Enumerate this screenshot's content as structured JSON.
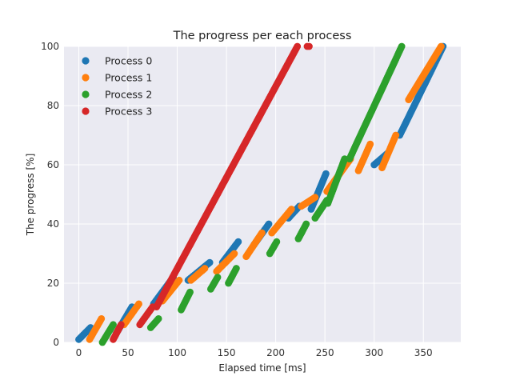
{
  "chart_data": {
    "type": "scatter",
    "title": "The progress per each process",
    "xlabel": "Elapsed time [ms]",
    "ylabel": "The progress [%]",
    "xlim": [
      -15,
      388
    ],
    "ylim": [
      0,
      100
    ],
    "xticks": [
      "0",
      "50",
      "100",
      "150",
      "200",
      "250",
      "300",
      "350"
    ],
    "yticks": [
      "0",
      "20",
      "40",
      "60",
      "80",
      "100"
    ],
    "grid": true,
    "legend_position": "top-left",
    "colors": {
      "plot_bg": "#eaeaf2",
      "grid": "#ffffff"
    },
    "series": [
      {
        "name": "Process 0",
        "color": "#1f77b4",
        "segments": [
          [
            0,
            1,
            12,
            5
          ],
          [
            38,
            3,
            54,
            12
          ],
          [
            76,
            13,
            96,
            22
          ],
          [
            111,
            21,
            133,
            27
          ],
          [
            146,
            27,
            162,
            34
          ],
          [
            178,
            33,
            193,
            40
          ],
          [
            213,
            42,
            224,
            46
          ],
          [
            236,
            45,
            251,
            57
          ],
          [
            300,
            60,
            314,
            64
          ],
          [
            326,
            70,
            370,
            100
          ]
        ]
      },
      {
        "name": "Process 1",
        "color": "#ff7f0e",
        "segments": [
          [
            11,
            1,
            23,
            8
          ],
          [
            46,
            6,
            61,
            13
          ],
          [
            85,
            14,
            102,
            21
          ],
          [
            114,
            21,
            128,
            25
          ],
          [
            140,
            24,
            158,
            30
          ],
          [
            170,
            29,
            186,
            37
          ],
          [
            196,
            37,
            216,
            45
          ],
          [
            226,
            46,
            240,
            49
          ],
          [
            252,
            51,
            276,
            62
          ],
          [
            284,
            58,
            296,
            67
          ],
          [
            308,
            59,
            322,
            70
          ],
          [
            335,
            82,
            368,
            100
          ]
        ]
      },
      {
        "name": "Process 2",
        "color": "#2ca02c",
        "segments": [
          [
            24,
            0,
            35,
            6
          ],
          [
            73,
            5,
            81,
            8
          ],
          [
            104,
            11,
            113,
            17
          ],
          [
            134,
            18,
            141,
            22
          ],
          [
            152,
            20,
            160,
            25
          ],
          [
            194,
            30,
            201,
            34
          ],
          [
            223,
            35,
            231,
            40
          ],
          [
            240,
            42,
            252,
            48
          ],
          [
            253,
            47,
            270,
            62
          ],
          [
            275,
            62,
            328,
            100
          ]
        ]
      },
      {
        "name": "Process 3",
        "color": "#d62728",
        "segments": [
          [
            35,
            1,
            43,
            6
          ],
          [
            62,
            6,
            75,
            12
          ],
          [
            79,
            12,
            222,
            100
          ],
          [
            232,
            100,
            234,
            100
          ]
        ]
      }
    ]
  }
}
